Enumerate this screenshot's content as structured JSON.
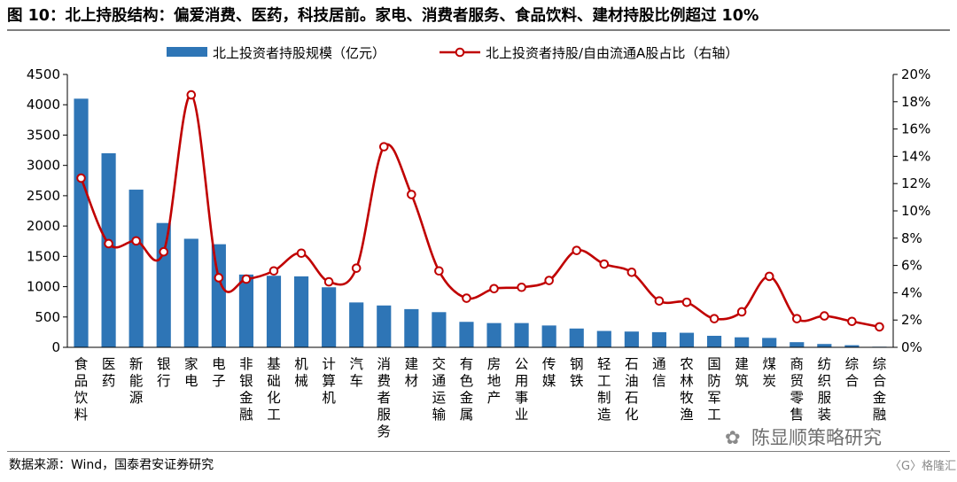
{
  "title": "图 10：北上持股结构：偏爱消费、医药，科技居前。家电、消费者服务、食品饮料、建材持股比例超过 10%",
  "source": "数据来源：Wind，国泰君安证券研究",
  "watermark": "陈显顺策略研究",
  "badge": "格隆汇",
  "colors": {
    "bar": "#2e75b6",
    "line": "#c00000",
    "marker_fill": "#ffffff"
  },
  "chart_data": {
    "type": "bar",
    "categories": [
      "食品饮料",
      "医药",
      "新能源",
      "银行",
      "家电",
      "电子",
      "非银金融",
      "基础化工",
      "机械",
      "计算机",
      "汽车",
      "消费者服务",
      "建材",
      "交通运输",
      "有色金属",
      "房地产",
      "公用事业",
      "传媒",
      "钢铁",
      "轻工制造",
      "石油石化",
      "通信",
      "农林牧渔",
      "国防军工",
      "建筑",
      "煤炭",
      "商贸零售",
      "纺织服装",
      "综合",
      "综合金融"
    ],
    "series": [
      {
        "name": "北上投资者持股规模（亿元）",
        "type": "bar",
        "axis": "left",
        "values": [
          4100,
          3200,
          2600,
          2050,
          1790,
          1700,
          1200,
          1180,
          1170,
          990,
          740,
          690,
          630,
          580,
          420,
          400,
          400,
          360,
          310,
          270,
          260,
          250,
          240,
          190,
          165,
          155,
          85,
          55,
          35,
          10
        ]
      },
      {
        "name": "北上投资者持股/自由流通A股占比（右轴）",
        "type": "line",
        "axis": "right",
        "values": [
          12.4,
          7.6,
          7.8,
          7.0,
          18.5,
          5.1,
          5.0,
          5.6,
          6.9,
          4.8,
          5.8,
          14.7,
          11.2,
          5.6,
          3.6,
          4.3,
          4.4,
          4.9,
          7.1,
          6.1,
          5.5,
          3.4,
          3.3,
          2.1,
          2.6,
          5.2,
          2.1,
          2.3,
          1.9,
          1.5
        ]
      }
    ],
    "y_left": {
      "min": 0,
      "max": 4500,
      "ticks": [
        "0",
        "500",
        "1000",
        "1500",
        "2000",
        "2500",
        "3000",
        "3500",
        "4000",
        "4500"
      ]
    },
    "y_right": {
      "min": 0,
      "max": 20,
      "ticks": [
        "0%",
        "2%",
        "4%",
        "6%",
        "8%",
        "10%",
        "12%",
        "14%",
        "16%",
        "18%",
        "20%"
      ]
    },
    "grid": false,
    "legend_position": "top"
  }
}
